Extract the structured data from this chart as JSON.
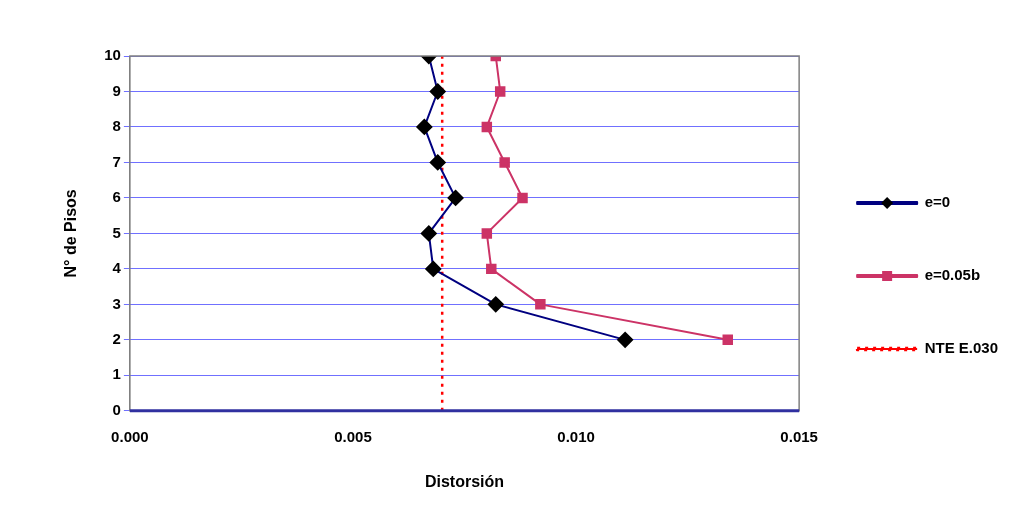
{
  "chart_data": {
    "type": "line",
    "xlabel": "Distorsión",
    "ylabel": "N° de Pisos",
    "xlim": [
      0,
      0.015
    ],
    "xticks": [
      {
        "value": 0,
        "label": "0.000"
      },
      {
        "value": 0.005,
        "label": "0.005"
      },
      {
        "value": 0.01,
        "label": "0.010"
      },
      {
        "value": 0.015,
        "label": "0.015"
      }
    ],
    "ylim": [
      0,
      10
    ],
    "yticks": [
      0,
      1,
      2,
      3,
      4,
      5,
      6,
      7,
      8,
      9,
      10
    ],
    "grid": "y",
    "legend": "right",
    "series": [
      {
        "name": "e=0",
        "color": "#000080",
        "marker": "diamond",
        "x": [
          0.0111,
          0.0082,
          0.0068,
          0.0067,
          0.0073,
          0.0069,
          0.0066,
          0.0069,
          0.0067
        ],
        "values": [
          2,
          3,
          4,
          5,
          6,
          7,
          8,
          9,
          10
        ]
      },
      {
        "name": "e=0.05b",
        "color": "#cc3366",
        "marker": "square",
        "x": [
          0.0134,
          0.0092,
          0.0081,
          0.008,
          0.0088,
          0.0084,
          0.008,
          0.0083,
          0.0082
        ],
        "values": [
          2,
          3,
          4,
          5,
          6,
          7,
          8,
          9,
          10
        ]
      },
      {
        "name": "NTE E.030",
        "color": "#ff0000",
        "marker": "none",
        "line_style": "dotted",
        "x": [
          0.007,
          0.007
        ],
        "values": [
          0,
          10
        ]
      }
    ]
  }
}
